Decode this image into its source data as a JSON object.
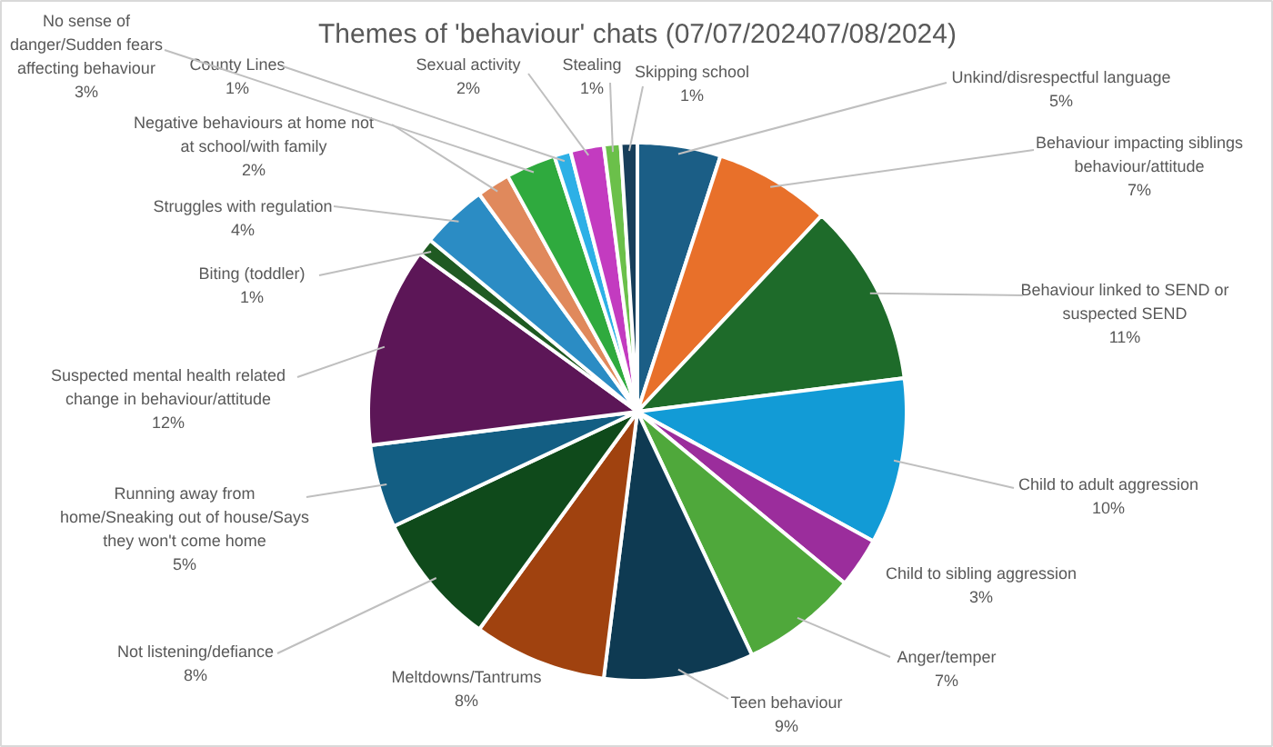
{
  "chart_data": {
    "type": "pie",
    "title": "Themes of 'behaviour' chats (07/07/202407/08/2024)",
    "categories": [
      "Unkind/disrespectful language",
      "Behaviour impacting siblings\nbehaviour/attitude",
      "Behaviour linked to SEND or\nsuspected SEND",
      "Child to adult aggression",
      "Child to sibling aggression",
      "Anger/temper",
      "Teen behaviour",
      "Meltdowns/Tantrums",
      "Not listening/defiance",
      "Running away from\nhome/Sneaking out of house/Says\nthey won't come home",
      "Suspected mental health related\nchange in behaviour/attitude",
      "Biting (toddler)",
      "Struggles with regulation",
      "Negative behaviours at home not\nat school/with family",
      "No sense of\ndanger/Sudden fears\naffecting behaviour",
      "County Lines",
      "Sexual activity",
      "Stealing",
      "Skipping school"
    ],
    "values": [
      5,
      7,
      11,
      10,
      3,
      7,
      9,
      8,
      8,
      5,
      12,
      1,
      4,
      2,
      3,
      1,
      2,
      1,
      1
    ],
    "value_labels": [
      "5%",
      "7%",
      "11%",
      "10%",
      "3%",
      "7%",
      "9%",
      "8%",
      "8%",
      "5%",
      "12%",
      "1%",
      "4%",
      "2%",
      "3%",
      "1%",
      "2%",
      "1%",
      "1%"
    ],
    "colors": [
      "#1b5e86",
      "#e8702a",
      "#1e6b2a",
      "#129bd6",
      "#9b2d9c",
      "#4fa83b",
      "#0e3a52",
      "#a0420f",
      "#0f4a1b",
      "#135e83",
      "#5c1657",
      "#1f5a22",
      "#2b8cc4",
      "#e0895c",
      "#2faa3e",
      "#2db0e6",
      "#c33bc0",
      "#6bc04a",
      "#173e5a"
    ]
  }
}
